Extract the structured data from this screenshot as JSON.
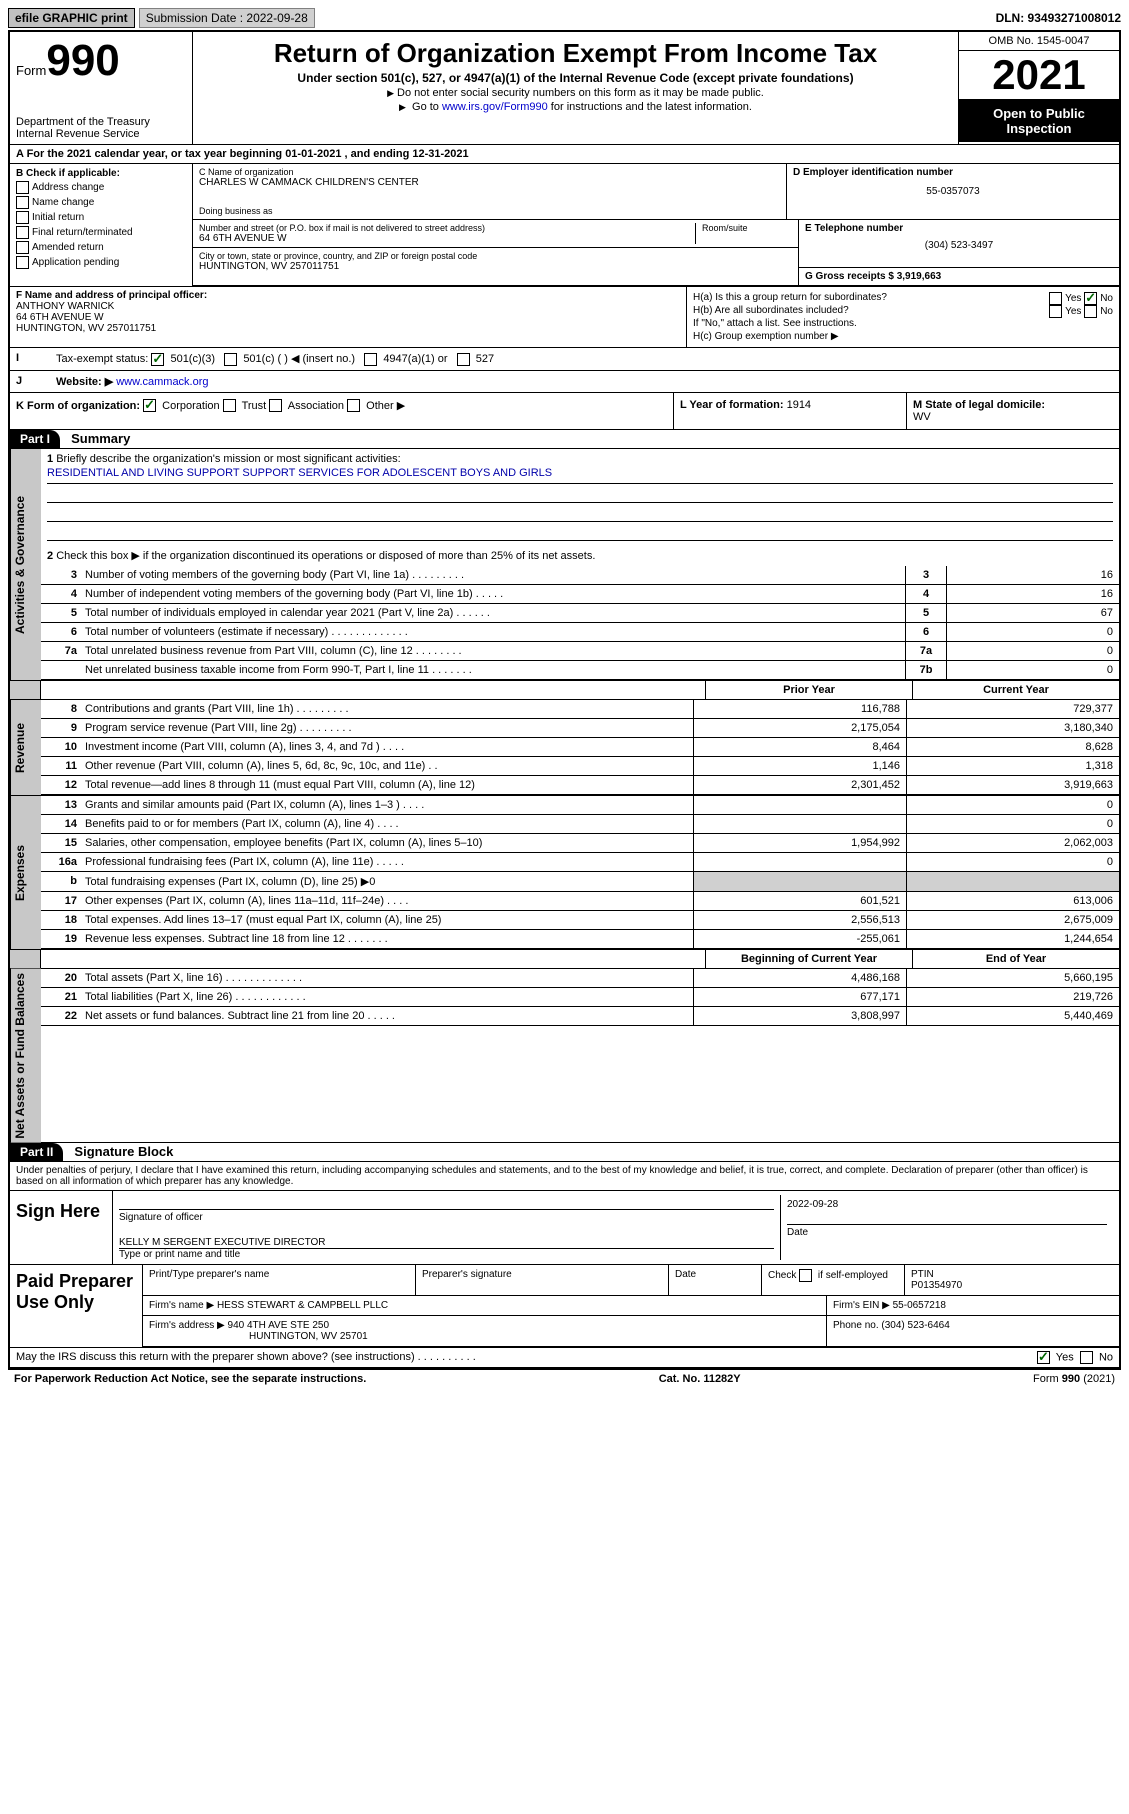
{
  "topbar": {
    "efile": "efile GRAPHIC print",
    "subdate_lbl": "Submission Date : 2022-09-28",
    "dln": "DLN: 93493271008012"
  },
  "header": {
    "form_prefix": "Form",
    "form_no": "990",
    "dept": "Department of the Treasury",
    "irs": "Internal Revenue Service",
    "title": "Return of Organization Exempt From Income Tax",
    "sub1": "Under section 501(c), 527, or 4947(a)(1) of the Internal Revenue Code (except private foundations)",
    "sub2": "Do not enter social security numbers on this form as it may be made public.",
    "sub3_pre": "Go to ",
    "sub3_link": "www.irs.gov/Form990",
    "sub3_post": " for instructions and the latest information.",
    "omb": "OMB No. 1545-0047",
    "year": "2021",
    "open": "Open to Public Inspection"
  },
  "rowA": "A  For the 2021 calendar year, or tax year beginning 01-01-2021    , and ending 12-31-2021",
  "colB": {
    "hdr": "B Check if applicable:",
    "opts": [
      "Address change",
      "Name change",
      "Initial return",
      "Final return/terminated",
      "Amended return",
      "Application pending"
    ]
  },
  "cd": {
    "c_lbl": "C Name of organization",
    "c_val": "CHARLES W CAMMACK CHILDREN'S CENTER",
    "dba_lbl": "Doing business as",
    "addr_lbl": "Number and street (or P.O. box if mail is not delivered to street address)",
    "room_lbl": "Room/suite",
    "addr_val": "64 6TH AVENUE W",
    "city_lbl": "City or town, state or province, country, and ZIP or foreign postal code",
    "city_val": "HUNTINGTON, WV  257011751",
    "d_lbl": "D Employer identification number",
    "d_val": "55-0357073",
    "e_lbl": "E Telephone number",
    "e_val": "(304) 523-3497",
    "g_lbl": "G Gross receipts $",
    "g_val": "3,919,663"
  },
  "f": {
    "lbl": "F Name and address of principal officer:",
    "name": "ANTHONY WARNICK",
    "addr": "64 6TH AVENUE W",
    "city": "HUNTINGTON, WV  257011751"
  },
  "h": {
    "ha": "H(a)  Is this a group return for subordinates?",
    "hb": "H(b)  Are all subordinates included?",
    "hb_note": "If \"No,\" attach a list. See instructions.",
    "hc": "H(c)  Group exemption number ▶",
    "yes": "Yes",
    "no": "No"
  },
  "rowI": {
    "lbl": "Tax-exempt status:",
    "o1": "501(c)(3)",
    "o2": "501(c) (   ) ◀ (insert no.)",
    "o3": "4947(a)(1) or",
    "o4": "527"
  },
  "rowJ": {
    "lbl": "Website: ▶",
    "val": "www.cammack.org"
  },
  "rowK": {
    "lbl": "K Form of organization:",
    "o1": "Corporation",
    "o2": "Trust",
    "o3": "Association",
    "o4": "Other ▶"
  },
  "rowL": {
    "lbl": "L Year of formation:",
    "val": "1914"
  },
  "rowM": {
    "lbl": "M State of legal domicile:",
    "val": "WV"
  },
  "part1": {
    "tag": "Part I",
    "title": "Summary"
  },
  "briefs": {
    "q1": "Briefly describe the organization's mission or most significant activities:",
    "q1v": "RESIDENTIAL AND LIVING SUPPORT SUPPORT SERVICES FOR ADOLESCENT BOYS AND GIRLS",
    "q2": "Check this box ▶     if the organization discontinued its operations or disposed of more than 25% of its net assets."
  },
  "govLines": [
    {
      "n": "3",
      "d": "Number of voting members of the governing body (Part VI, line 1a)  .   .   .   .   .   .   .   .   .",
      "b": "3",
      "v": "16"
    },
    {
      "n": "4",
      "d": "Number of independent voting members of the governing body (Part VI, line 1b)  .   .   .   .   .",
      "b": "4",
      "v": "16"
    },
    {
      "n": "5",
      "d": "Total number of individuals employed in calendar year 2021 (Part V, line 2a)  .   .   .   .   .   .",
      "b": "5",
      "v": "67"
    },
    {
      "n": "6",
      "d": "Total number of volunteers (estimate if necessary)  .   .   .   .   .   .   .   .   .   .   .   .   .",
      "b": "6",
      "v": "0"
    },
    {
      "n": "7a",
      "d": "Total unrelated business revenue from Part VIII, column (C), line 12  .   .   .   .   .   .   .   .",
      "b": "7a",
      "v": "0"
    },
    {
      "n": "",
      "d": "Net unrelated business taxable income from Form 990-T, Part I, line 11  .   .   .   .   .   .   .",
      "b": "7b",
      "v": "0"
    }
  ],
  "twoColHdr": {
    "prior": "Prior Year",
    "current": "Current Year"
  },
  "revenueLines": [
    {
      "n": "8",
      "d": "Contributions and grants (Part VIII, line 1h)  .   .   .   .   .   .   .   .   .",
      "p": "116,788",
      "c": "729,377"
    },
    {
      "n": "9",
      "d": "Program service revenue (Part VIII, line 2g)  .   .   .   .   .   .   .   .   .",
      "p": "2,175,054",
      "c": "3,180,340"
    },
    {
      "n": "10",
      "d": "Investment income (Part VIII, column (A), lines 3, 4, and 7d )  .   .   .   .",
      "p": "8,464",
      "c": "8,628"
    },
    {
      "n": "11",
      "d": "Other revenue (Part VIII, column (A), lines 5, 6d, 8c, 9c, 10c, and 11e)  .   .",
      "p": "1,146",
      "c": "1,318"
    },
    {
      "n": "12",
      "d": "Total revenue—add lines 8 through 11 (must equal Part VIII, column (A), line 12)",
      "p": "2,301,452",
      "c": "3,919,663"
    }
  ],
  "expenseLines": [
    {
      "n": "13",
      "d": "Grants and similar amounts paid (Part IX, column (A), lines 1–3 )  .   .   .   .",
      "p": "",
      "c": "0"
    },
    {
      "n": "14",
      "d": "Benefits paid to or for members (Part IX, column (A), line 4)  .   .   .   .",
      "p": "",
      "c": "0"
    },
    {
      "n": "15",
      "d": "Salaries, other compensation, employee benefits (Part IX, column (A), lines 5–10)",
      "p": "1,954,992",
      "c": "2,062,003"
    },
    {
      "n": "16a",
      "d": "Professional fundraising fees (Part IX, column (A), line 11e)  .   .   .   .   .",
      "p": "",
      "c": "0"
    },
    {
      "n": "b",
      "d": "Total fundraising expenses (Part IX, column (D), line 25) ▶0",
      "p": "shade",
      "c": "shade"
    },
    {
      "n": "17",
      "d": "Other expenses (Part IX, column (A), lines 11a–11d, 11f–24e)  .   .   .   .",
      "p": "601,521",
      "c": "613,006"
    },
    {
      "n": "18",
      "d": "Total expenses. Add lines 13–17 (must equal Part IX, column (A), line 25)",
      "p": "2,556,513",
      "c": "2,675,009"
    },
    {
      "n": "19",
      "d": "Revenue less expenses. Subtract line 18 from line 12  .   .   .   .   .   .   .",
      "p": "-255,061",
      "c": "1,244,654"
    }
  ],
  "netHdr": {
    "beg": "Beginning of Current Year",
    "end": "End of Year"
  },
  "netLines": [
    {
      "n": "20",
      "d": "Total assets (Part X, line 16)  .   .   .   .   .   .   .   .   .   .   .   .   .",
      "p": "4,486,168",
      "c": "5,660,195"
    },
    {
      "n": "21",
      "d": "Total liabilities (Part X, line 26)  .   .   .   .   .   .   .   .   .   .   .   .",
      "p": "677,171",
      "c": "219,726"
    },
    {
      "n": "22",
      "d": "Net assets or fund balances. Subtract line 21 from line 20  .   .   .   .   .",
      "p": "3,808,997",
      "c": "5,440,469"
    }
  ],
  "part2": {
    "tag": "Part II",
    "title": "Signature Block"
  },
  "penalty": "Under penalties of perjury, I declare that I have examined this return, including accompanying schedules and statements, and to the best of my knowledge and belief, it is true, correct, and complete. Declaration of preparer (other than officer) is based on all information of which preparer has any knowledge.",
  "sign": {
    "here": "Sign Here",
    "sig_lbl": "Signature of officer",
    "date_lbl": "Date",
    "date_val": "2022-09-28",
    "name": "KELLY M SERGENT  EXECUTIVE DIRECTOR",
    "name_lbl": "Type or print name and title"
  },
  "paid": {
    "lbl": "Paid Preparer Use Only",
    "h1": "Print/Type preparer's name",
    "h2": "Preparer's signature",
    "h3": "Date",
    "h4_pre": "Check",
    "h4_post": "if self-employed",
    "h5": "PTIN",
    "ptin": "P01354970",
    "firm_name_lbl": "Firm's name    ▶",
    "firm_name": "HESS STEWART & CAMPBELL PLLC",
    "firm_ein_lbl": "Firm's EIN ▶",
    "firm_ein": "55-0657218",
    "firm_addr_lbl": "Firm's address ▶",
    "firm_addr1": "940 4TH AVE STE 250",
    "firm_addr2": "HUNTINGTON, WV  25701",
    "phone_lbl": "Phone no.",
    "phone": "(304) 523-6464"
  },
  "footer": {
    "discuss": "May the IRS discuss this return with the preparer shown above? (see instructions)  .   .   .   .   .   .   .   .   .   .",
    "yes": "Yes",
    "no": "No",
    "pra": "For Paperwork Reduction Act Notice, see the separate instructions.",
    "cat": "Cat. No. 11282Y",
    "form": "Form 990 (2021)"
  },
  "vtabs": {
    "gov": "Activities & Governance",
    "rev": "Revenue",
    "exp": "Expenses",
    "net": "Net Assets or Fund Balances"
  }
}
